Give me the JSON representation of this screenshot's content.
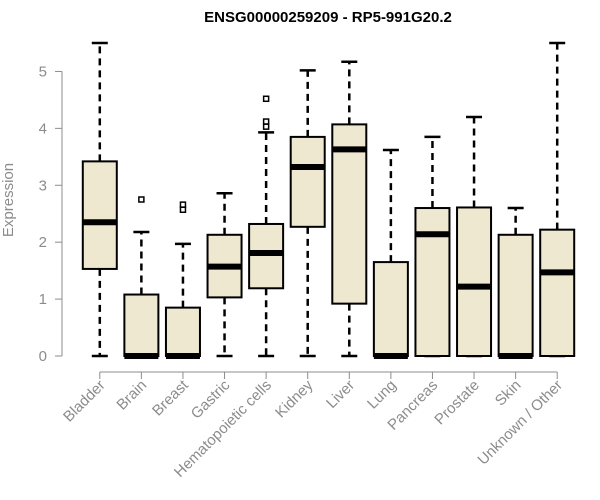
{
  "chart_data": {
    "type": "boxplot",
    "title": "ENSG00000259209 - RP5-991G20.2",
    "xlabel": "",
    "ylabel": "Expression",
    "ylim": [
      0,
      5.5
    ],
    "yticks": [
      0,
      1,
      2,
      3,
      4,
      5
    ],
    "grid": false,
    "box_fill": "#efe8d0",
    "box_stroke": "#000000",
    "axis_color": "#8c8c8c",
    "categories": [
      "Bladder",
      "Brain",
      "Breast",
      "Gastric",
      "Hematopoietic cells",
      "Kidney",
      "Liver",
      "Lung",
      "Pancreas",
      "Prostate",
      "Skin",
      "Unknown / Other"
    ],
    "boxes": [
      {
        "label": "Bladder",
        "min": 0,
        "q1": 1.53,
        "median": 2.35,
        "q3": 3.42,
        "max": 5.5,
        "outliers": []
      },
      {
        "label": "Brain",
        "min": 0,
        "q1": 0,
        "median": 0,
        "q3": 1.08,
        "max": 2.18,
        "outliers": [
          2.75
        ]
      },
      {
        "label": "Breast",
        "min": 0,
        "q1": 0,
        "median": 0,
        "q3": 0.85,
        "max": 1.97,
        "outliers": [
          2.57,
          2.66
        ]
      },
      {
        "label": "Gastric",
        "min": 0,
        "q1": 1.03,
        "median": 1.57,
        "q3": 2.13,
        "max": 2.86,
        "outliers": []
      },
      {
        "label": "Hematopoietic cells",
        "min": 0,
        "q1": 1.19,
        "median": 1.81,
        "q3": 2.32,
        "max": 3.93,
        "outliers": [
          4.03,
          4.12,
          4.52
        ]
      },
      {
        "label": "Kidney",
        "min": 0,
        "q1": 2.27,
        "median": 3.32,
        "q3": 3.85,
        "max": 5.02,
        "outliers": []
      },
      {
        "label": "Liver",
        "min": 0,
        "q1": 0.92,
        "median": 3.63,
        "q3": 4.07,
        "max": 5.17,
        "outliers": []
      },
      {
        "label": "Lung",
        "min": 0,
        "q1": 0,
        "median": 0,
        "q3": 1.65,
        "max": 3.62,
        "outliers": []
      },
      {
        "label": "Pancreas",
        "min": 0,
        "q1": 0,
        "median": 2.14,
        "q3": 2.6,
        "max": 3.85,
        "outliers": []
      },
      {
        "label": "Prostate",
        "min": 0,
        "q1": 0,
        "median": 1.22,
        "q3": 2.61,
        "max": 4.2,
        "outliers": []
      },
      {
        "label": "Skin",
        "min": 0,
        "q1": 0,
        "median": 0,
        "q3": 2.13,
        "max": 2.6,
        "outliers": []
      },
      {
        "label": "Unknown / Other",
        "min": 0,
        "q1": 0,
        "median": 1.47,
        "q3": 2.22,
        "max": 5.5,
        "outliers": []
      }
    ]
  }
}
